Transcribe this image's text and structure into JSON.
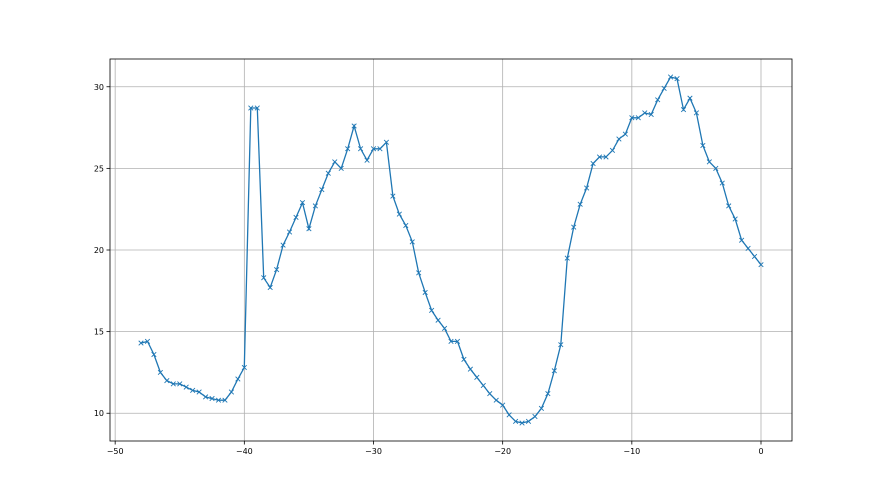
{
  "chart_data": {
    "type": "line",
    "title": "",
    "xlabel": "",
    "ylabel": "",
    "xlim": [
      -50.4,
      2.4
    ],
    "ylim": [
      8.3,
      31.7
    ],
    "xticks": [
      -50,
      -40,
      -30,
      -20,
      -10,
      0
    ],
    "yticks": [
      10,
      15,
      20,
      25,
      30
    ],
    "grid": true,
    "marker": "x",
    "color": "#1f77b4",
    "series": [
      {
        "x": [
          -48,
          -47.5,
          -47,
          -46.5,
          -46,
          -45.5,
          -45,
          -44.5,
          -44,
          -43.5,
          -43,
          -42.5,
          -42,
          -41.5,
          -41,
          -40.5,
          -40,
          -39.5,
          -39,
          -38.5,
          -38,
          -37.5,
          -37,
          -36.5,
          -36,
          -35.5,
          -35,
          -34.5,
          -34,
          -33.5,
          -33,
          -32.5,
          -32,
          -31.5,
          -31,
          -30.5,
          -30,
          -29.5,
          -29,
          -28.5,
          -28,
          -27.5,
          -27,
          -26.5,
          -26,
          -25.5,
          -25,
          -24.5,
          -24,
          -23.5,
          -23,
          -22.5,
          -22,
          -21.5,
          -21,
          -20.5,
          -20,
          -19.5,
          -19,
          -18.5,
          -18,
          -17.5,
          -17,
          -16.5,
          -16,
          -15.5,
          -15,
          -14.5,
          -14,
          -13.5,
          -13,
          -12.5,
          -12,
          -11.5,
          -11,
          -10.5,
          -10,
          -9.5,
          -9,
          -8.5,
          -8,
          -7.5,
          -7,
          -6.5,
          -6,
          -5.5,
          -5,
          -4.5,
          -4,
          -3.5,
          -3,
          -2.5,
          -2,
          -1.5,
          -1,
          -0.5,
          0
        ],
        "y": [
          14.3,
          14.4,
          13.6,
          12.5,
          12.0,
          11.8,
          11.8,
          11.6,
          11.4,
          11.3,
          11.0,
          10.9,
          10.8,
          10.8,
          11.3,
          12.1,
          12.8,
          28.7,
          28.7,
          18.3,
          17.7,
          18.8,
          20.3,
          21.1,
          22.0,
          22.9,
          21.3,
          22.7,
          23.7,
          24.7,
          25.4,
          25.0,
          26.2,
          27.6,
          26.2,
          25.5,
          26.2,
          26.2,
          26.6,
          23.3,
          22.2,
          21.5,
          20.5,
          18.6,
          17.4,
          16.3,
          15.7,
          15.2,
          14.4,
          14.4,
          13.3,
          12.7,
          12.2,
          11.7,
          11.2,
          10.8,
          10.5,
          9.9,
          9.5,
          9.4,
          9.5,
          9.8,
          10.3,
          11.2,
          12.6,
          14.2,
          19.5,
          21.4,
          22.8,
          23.8,
          25.3,
          25.7,
          25.7,
          26.1,
          26.8,
          27.1,
          28.1,
          28.1,
          28.4,
          28.3,
          29.2,
          29.9,
          30.6,
          30.5,
          28.6,
          29.3,
          28.4,
          26.4,
          25.4,
          25.0,
          24.1,
          22.7,
          21.9,
          20.6,
          20.1,
          19.6,
          19.1
        ]
      }
    ]
  }
}
